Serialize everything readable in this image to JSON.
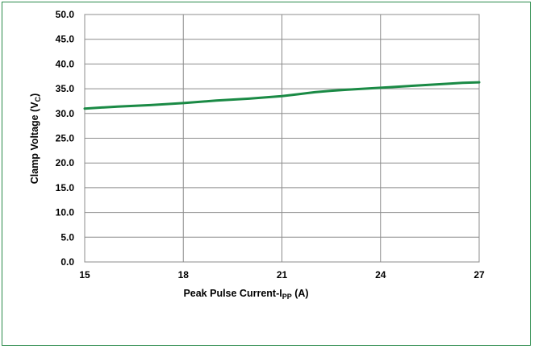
{
  "chart_data": {
    "type": "line",
    "title": "",
    "xlabel": {
      "main": "Peak Pulse Current-I",
      "sub": "PP",
      "suffix": " (A)"
    },
    "ylabel": {
      "main": "Clamp Voltage (V",
      "sub": "C",
      "suffix": ")"
    },
    "xlim": [
      15,
      27
    ],
    "ylim": [
      0,
      50
    ],
    "x_ticks": [
      "15",
      "18",
      "21",
      "24",
      "27"
    ],
    "x_tick_values": [
      15,
      18,
      21,
      24,
      27
    ],
    "y_ticks": [
      "0.0",
      "5.0",
      "10.0",
      "15.0",
      "20.0",
      "25.0",
      "30.0",
      "35.0",
      "40.0",
      "45.0",
      "50.0"
    ],
    "y_tick_values": [
      0,
      5,
      10,
      15,
      20,
      25,
      30,
      35,
      40,
      45,
      50
    ],
    "grid": true,
    "series": [
      {
        "color": "#1a8a45",
        "x": [
          15,
          16,
          17,
          18,
          19,
          20,
          21,
          21.5,
          22,
          22.5,
          23,
          24,
          25,
          26,
          26.5,
          27
        ],
        "y": [
          31.0,
          31.4,
          31.7,
          32.1,
          32.6,
          33.0,
          33.5,
          33.9,
          34.3,
          34.6,
          34.8,
          35.2,
          35.6,
          36.0,
          36.2,
          36.3
        ]
      }
    ]
  }
}
